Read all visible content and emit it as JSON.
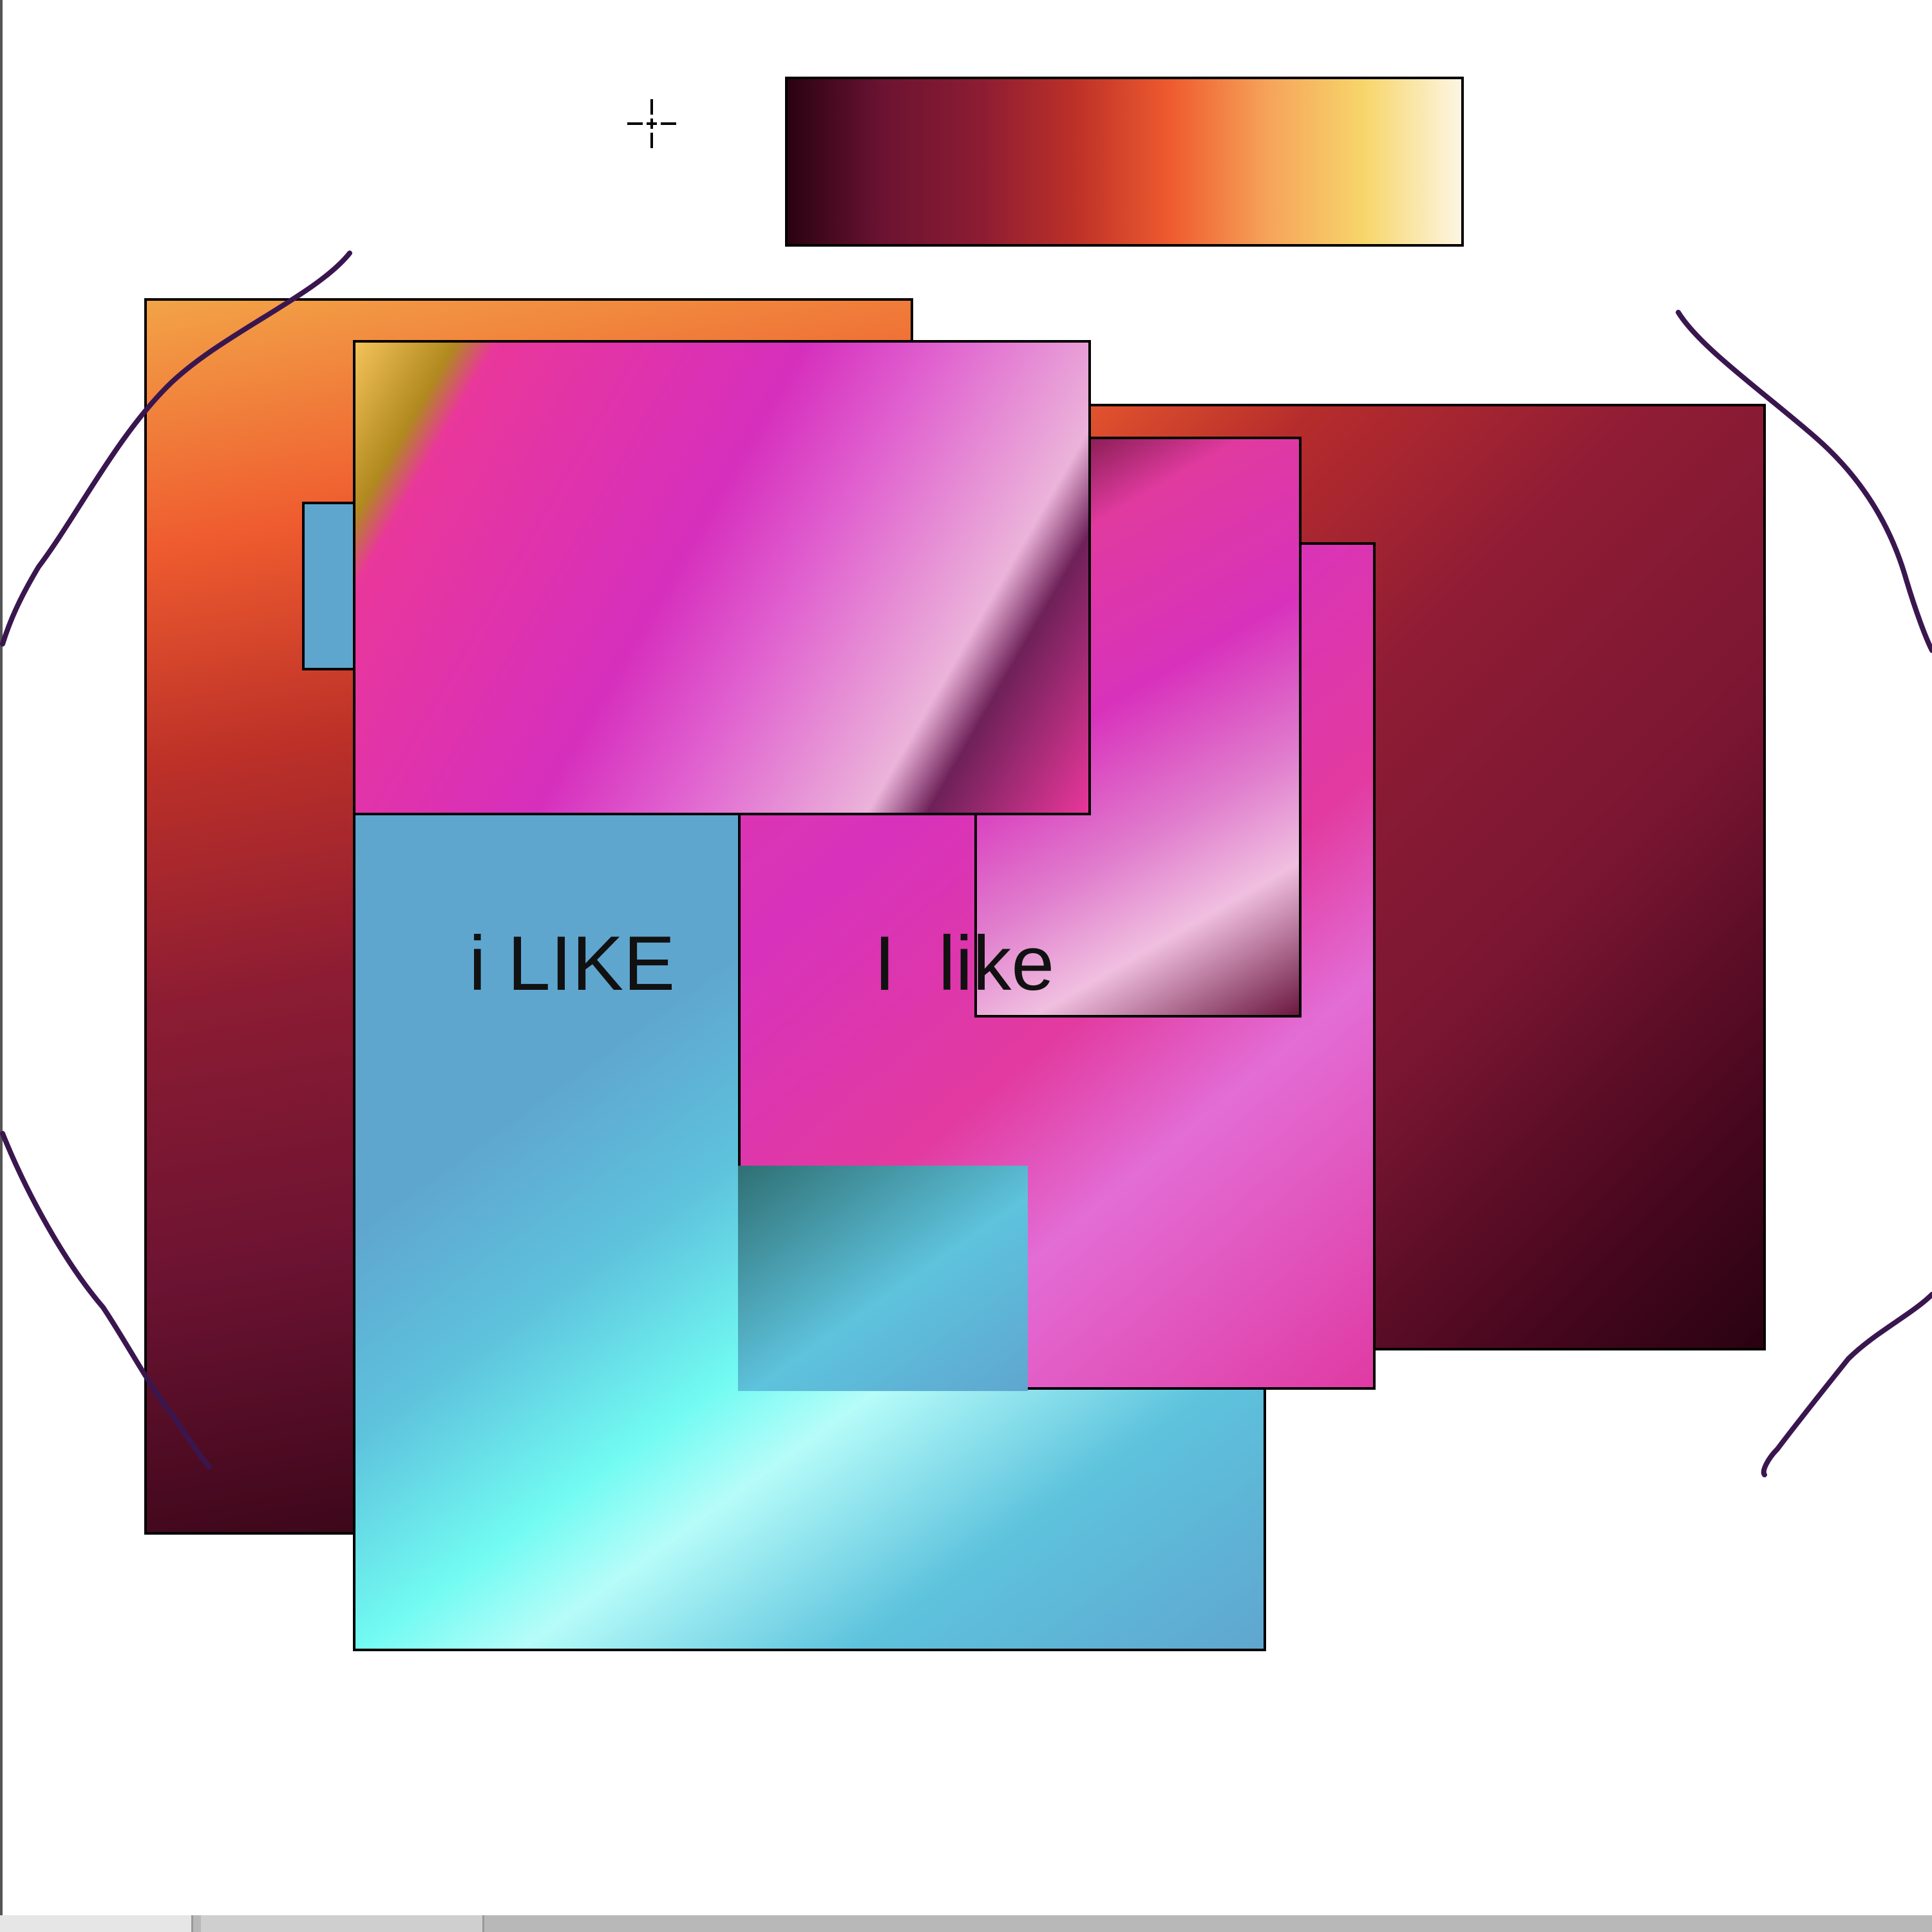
{
  "canvas": {
    "captions": {
      "left": "i LIKE",
      "right": "I  like"
    }
  },
  "palette": {
    "stops": [
      "#2a0212",
      "#6c1332",
      "#8c1c33",
      "#bd3128",
      "#ef5c2f",
      "#f6a45a",
      "#f7d66b",
      "#fdf5e2"
    ]
  },
  "colors": {
    "stroke": "#3a164f",
    "border": "#000000",
    "orange": "#ef5c2f",
    "maroon": "#8c1c33",
    "cyan": "#72fbf2",
    "blue": "#5fa6cf",
    "magenta": "#d832bc",
    "pink": "#e03aa3"
  },
  "cursor": {
    "type": "crosshair-icon"
  }
}
